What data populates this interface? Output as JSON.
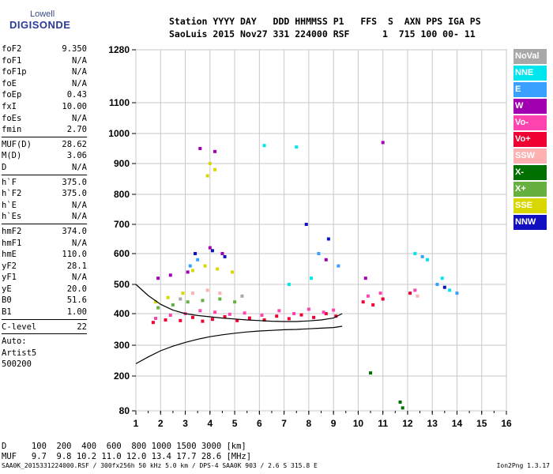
{
  "logo": {
    "top": "Lowell",
    "main": "DIGISONDE"
  },
  "header": {
    "line1": "Station YYYY DAY   DDD HHMMSS P1   FFS  S  AXN PPS IGA PS",
    "line2": "SaoLuis 2015 Nov27 331 224000 RSF      1  715 100 00- 11"
  },
  "params": {
    "group1": [
      {
        "k": "foF2",
        "v": "9.350"
      },
      {
        "k": "foF1",
        "v": "N/A"
      },
      {
        "k": "foF1p",
        "v": "N/A"
      },
      {
        "k": "foE",
        "v": "N/A"
      },
      {
        "k": "foEp",
        "v": "0.43"
      },
      {
        "k": "fxI",
        "v": "10.00"
      },
      {
        "k": "foEs",
        "v": "N/A"
      },
      {
        "k": "fmin",
        "v": "2.70"
      }
    ],
    "group2": [
      {
        "k": "MUF(D)",
        "v": "28.62"
      },
      {
        "k": "M(D)",
        "v": "3.06"
      },
      {
        "k": "D",
        "v": "N/A"
      }
    ],
    "group3": [
      {
        "k": "h`F",
        "v": "375.0"
      },
      {
        "k": "h`F2",
        "v": "375.0"
      },
      {
        "k": "h`E",
        "v": "N/A"
      },
      {
        "k": "h`Es",
        "v": "N/A"
      }
    ],
    "group4": [
      {
        "k": "hmF2",
        "v": "374.0"
      },
      {
        "k": "hmF1",
        "v": "N/A"
      },
      {
        "k": "hmE",
        "v": "110.0"
      },
      {
        "k": "yF2",
        "v": "28.1"
      },
      {
        "k": "yF1",
        "v": "N/A"
      },
      {
        "k": "yE",
        "v": "20.0"
      },
      {
        "k": "B0",
        "v": "51.6"
      },
      {
        "k": "B1",
        "v": "1.00"
      }
    ],
    "group5": [
      {
        "k": "C-level",
        "v": "22"
      }
    ],
    "auto": [
      "Auto:",
      "Artist5",
      "500200"
    ]
  },
  "bottom": {
    "d_row": "D     100  200  400  600  800 1000 1500 3000 [km]",
    "muf_row": "MUF   9.7  9.8 10.2 11.0 12.0 13.4 17.7 28.6 [MHz]"
  },
  "footer": {
    "left": "SAA0K_2015331224000.RSF / 300fx256h 50 kHz 5.0 km / DPS-4 SAA0K 903 / 2.6 S 315.8 E",
    "right": "Ion2Png 1.3.17"
  },
  "legend": [
    {
      "label": "NoVal",
      "color": "#a8a8a8"
    },
    {
      "label": "NNE",
      "color": "#00e5ee"
    },
    {
      "label": "E",
      "color": "#3aa0ff"
    },
    {
      "label": "W",
      "color": "#a000b0"
    },
    {
      "label": "Vo-",
      "color": "#ff44b0"
    },
    {
      "label": "Vo+",
      "color": "#ee0033"
    },
    {
      "label": "SSW",
      "color": "#ffb0b0"
    },
    {
      "label": "X-",
      "color": "#007000"
    },
    {
      "label": "X+",
      "color": "#66b040"
    },
    {
      "label": "SSE",
      "color": "#d8d800"
    },
    {
      "label": "NNW",
      "color": "#1010c0"
    }
  ],
  "chart_data": {
    "type": "scatter",
    "xlabel": "",
    "ylabel": "",
    "x_ticks": [
      1,
      2,
      3,
      4,
      5,
      6,
      7,
      8,
      9,
      10,
      11,
      12,
      13,
      14,
      15,
      16
    ],
    "y_ticks": [
      80,
      200,
      300,
      400,
      500,
      600,
      700,
      800,
      900,
      1000,
      1100,
      1280
    ],
    "xlim": [
      1,
      16
    ],
    "ylim": [
      80,
      1280
    ],
    "y_scale": "nonlinear (compressed below 300 km)",
    "grid": true,
    "legend_placement": "right",
    "series": [
      {
        "name": "Vo+",
        "color": "#ee0033",
        "x": [
          1.7,
          2.2,
          2.8,
          3.3,
          3.7,
          4.1,
          4.6,
          5.1,
          5.6,
          6.2,
          6.7,
          7.2,
          7.7,
          8.2,
          8.7,
          9.1,
          10.2,
          10.6,
          11.0,
          12.1
        ],
        "y": [
          372,
          380,
          378,
          388,
          376,
          382,
          390,
          378,
          386,
          380,
          392,
          384,
          396,
          388,
          400,
          392,
          440,
          430,
          450,
          470
        ]
      },
      {
        "name": "Vo-",
        "color": "#ff44b0",
        "x": [
          1.8,
          2.4,
          3.0,
          3.6,
          4.2,
          4.8,
          5.4,
          6.1,
          6.8,
          7.4,
          8.0,
          8.6,
          9.0,
          10.4,
          10.9,
          12.3
        ],
        "y": [
          385,
          395,
          400,
          410,
          405,
          398,
          402,
          395,
          410,
          400,
          415,
          405,
          412,
          460,
          470,
          480
        ]
      },
      {
        "name": "SSE",
        "color": "#d8d800",
        "x": [
          1.8,
          2.3,
          2.9,
          3.3,
          3.8,
          4.3,
          4.9,
          3.9,
          4.2,
          4.0
        ],
        "y": [
          440,
          455,
          470,
          545,
          560,
          550,
          540,
          860,
          880,
          900
        ]
      },
      {
        "name": "X+",
        "color": "#66b040",
        "x": [
          1.9,
          2.5,
          3.1,
          3.7,
          4.4,
          5.0
        ],
        "y": [
          420,
          430,
          440,
          445,
          450,
          440
        ]
      },
      {
        "name": "W",
        "color": "#a000b0",
        "x": [
          1.9,
          2.4,
          3.1,
          3.4,
          4.0,
          4.5,
          3.6,
          4.2,
          8.7,
          10.3,
          11.0
        ],
        "y": [
          520,
          530,
          540,
          600,
          620,
          600,
          950,
          940,
          580,
          520,
          970
        ]
      },
      {
        "name": "NNE",
        "color": "#00e5ee",
        "x": [
          6.2,
          7.2,
          8.1,
          12.3,
          12.8,
          13.4,
          13.7,
          7.5
        ],
        "y": [
          960,
          500,
          520,
          600,
          580,
          520,
          480,
          955
        ]
      },
      {
        "name": "E",
        "color": "#3aa0ff",
        "x": [
          3.2,
          3.5,
          8.4,
          9.2,
          12.6,
          13.2,
          14.0
        ],
        "y": [
          560,
          580,
          600,
          560,
          590,
          500,
          470
        ]
      },
      {
        "name": "NNW",
        "color": "#1010c0",
        "x": [
          3.4,
          4.1,
          4.6,
          7.9,
          8.8,
          13.5
        ],
        "y": [
          600,
          610,
          590,
          700,
          650,
          490
        ]
      },
      {
        "name": "X-",
        "color": "#007000",
        "x": [
          11.7,
          11.8,
          10.5
        ],
        "y": [
          110,
          90,
          210
        ]
      },
      {
        "name": "SSW",
        "color": "#ffb0b0",
        "x": [
          3.3,
          3.9,
          4.4,
          12.4
        ],
        "y": [
          470,
          480,
          470,
          460
        ]
      },
      {
        "name": "NoVal",
        "color": "#a8a8a8",
        "x": [
          2.8,
          5.3
        ],
        "y": [
          450,
          460
        ]
      }
    ],
    "profile_curve": {
      "x": [
        1,
        1.5,
        2,
        2.5,
        3,
        3.5,
        4,
        4.5,
        5,
        5.5,
        6,
        6.5,
        7,
        7.5,
        8,
        8.5,
        9,
        9.35
      ],
      "y": [
        240,
        262,
        282,
        297,
        309,
        319,
        327,
        333,
        338,
        342,
        345,
        347,
        349,
        350,
        352,
        354,
        356,
        360
      ]
    },
    "trace_curve": {
      "x": [
        1,
        1.5,
        2,
        2.5,
        3,
        3.5,
        4,
        4.5,
        5,
        5.5,
        6,
        6.5,
        7,
        7.5,
        8,
        8.5,
        9,
        9.35
      ],
      "y": [
        500,
        462,
        432,
        412,
        400,
        394,
        390,
        386,
        383,
        380,
        378,
        376,
        375,
        375,
        377,
        380,
        386,
        400
      ]
    }
  }
}
